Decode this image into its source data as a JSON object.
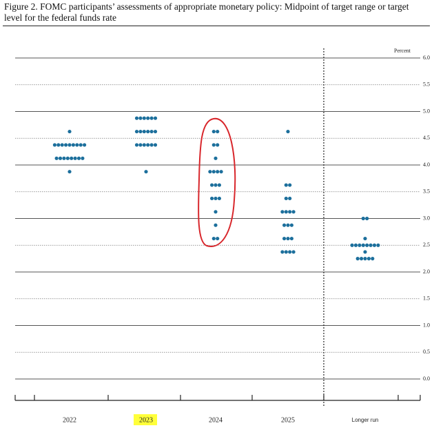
{
  "chart_data": {
    "type": "dot",
    "title": "Figure 2.  FOMC participants’ assessments of appropriate monetary policy: Midpoint of target range or target level for the federal funds rate",
    "y_label": "Percent",
    "categories": [
      "2022",
      "2023",
      "2024",
      "2025",
      "Longer run"
    ],
    "values": [
      [
        4.625,
        4.375,
        4.375,
        4.375,
        4.375,
        4.375,
        4.375,
        4.375,
        4.375,
        4.375,
        4.125,
        4.125,
        4.125,
        4.125,
        4.125,
        4.125,
        4.125,
        4.125,
        3.875
      ],
      [
        4.875,
        4.875,
        4.875,
        4.875,
        4.875,
        4.875,
        4.625,
        4.625,
        4.625,
        4.625,
        4.625,
        4.625,
        4.375,
        4.375,
        4.375,
        4.375,
        4.375,
        4.375,
        3.875
      ],
      [
        4.625,
        4.625,
        4.375,
        4.375,
        4.125,
        3.875,
        3.875,
        3.875,
        3.875,
        3.625,
        3.625,
        3.625,
        3.375,
        3.375,
        3.375,
        3.125,
        2.875,
        2.625,
        2.625
      ],
      [
        4.625,
        3.625,
        3.625,
        3.375,
        3.375,
        3.125,
        3.125,
        3.125,
        3.125,
        2.875,
        2.875,
        2.875,
        2.625,
        2.625,
        2.625,
        2.375,
        2.375,
        2.375,
        2.375
      ],
      [
        3.0,
        3.0,
        2.625,
        2.5,
        2.5,
        2.5,
        2.5,
        2.5,
        2.5,
        2.5,
        2.5,
        2.375,
        2.25,
        2.25,
        2.25,
        2.25,
        2.25
      ]
    ],
    "color": "#1c6f9c",
    "ylim": [
      0,
      6
    ],
    "yticks": [
      {
        "value": 0,
        "label": "0.0"
      },
      0.5,
      {
        "value": 1,
        "label": "1.0"
      },
      1.5,
      {
        "value": 2,
        "label": "2.0"
      },
      2.5,
      {
        "value": 3,
        "label": "3.0"
      },
      3.5,
      {
        "value": 4,
        "label": "4.0"
      },
      4.5,
      {
        "value": 5,
        "label": "5.0"
      },
      5.5,
      {
        "value": 6,
        "label": "6.0"
      }
    ],
    "grid": true
  }
}
